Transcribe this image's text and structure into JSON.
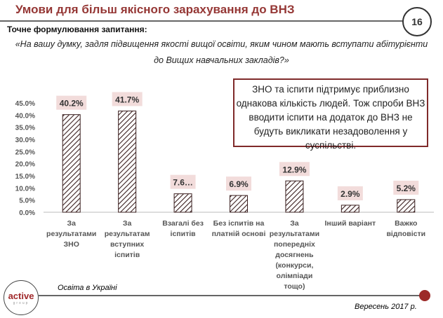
{
  "header": {
    "title": "Умови для більш якісного зарахування до ВНЗ",
    "page_number": "16"
  },
  "question": {
    "label": "Точне формулювання запитання:",
    "text_line1": "«На вашу думку, задля підвищення якості вищої освіти, яким чином мають вступати абітурієнти",
    "text_line2": "до Вищих навчальних закладів?»"
  },
  "callout": {
    "text": "ЗНО та іспити підтримує приблизно однакова кількість людей. Тож спроби ВНЗ вводити іспити на додаток до ВНЗ не будуть викликати незадоволення у суспільстві."
  },
  "footer": {
    "source": "Освіта в Україні",
    "date": "Вересень 2017 р.",
    "logo_text": "active",
    "logo_sub": "group"
  },
  "colors": {
    "accent": "#953735",
    "label_bg": "#f2dcdb",
    "bar_stroke": "#3a1f1f"
  },
  "chart_data": {
    "type": "bar",
    "categories": [
      [
        "За",
        "результатами",
        "ЗНО"
      ],
      [
        "За",
        "результатам",
        "вступних",
        "іспитів"
      ],
      [
        "Взагалі без",
        "іспитів"
      ],
      [
        "Без іспитів на",
        "платній основі"
      ],
      [
        "За",
        "результатами",
        "попередніх",
        "досягнень",
        "(конкурси,",
        "олімпіади",
        "тощо)"
      ],
      [
        "Інший варіант"
      ],
      [
        "Важко",
        "відповісти"
      ]
    ],
    "values": [
      40.2,
      41.7,
      7.6,
      6.9,
      12.9,
      2.9,
      5.2
    ],
    "data_labels": [
      "40.2%",
      "41.7%",
      "7.6…",
      "6.9%",
      "12.9%",
      "2.9%",
      "5.2%"
    ],
    "ylim": [
      0,
      45
    ],
    "yticks": [
      "0.0%",
      "5.0%",
      "10.0%",
      "15.0%",
      "20.0%",
      "25.0%",
      "30.0%",
      "35.0%",
      "40.0%",
      "45.0%"
    ],
    "pattern": "diagonal-hatch",
    "grid": false
  }
}
